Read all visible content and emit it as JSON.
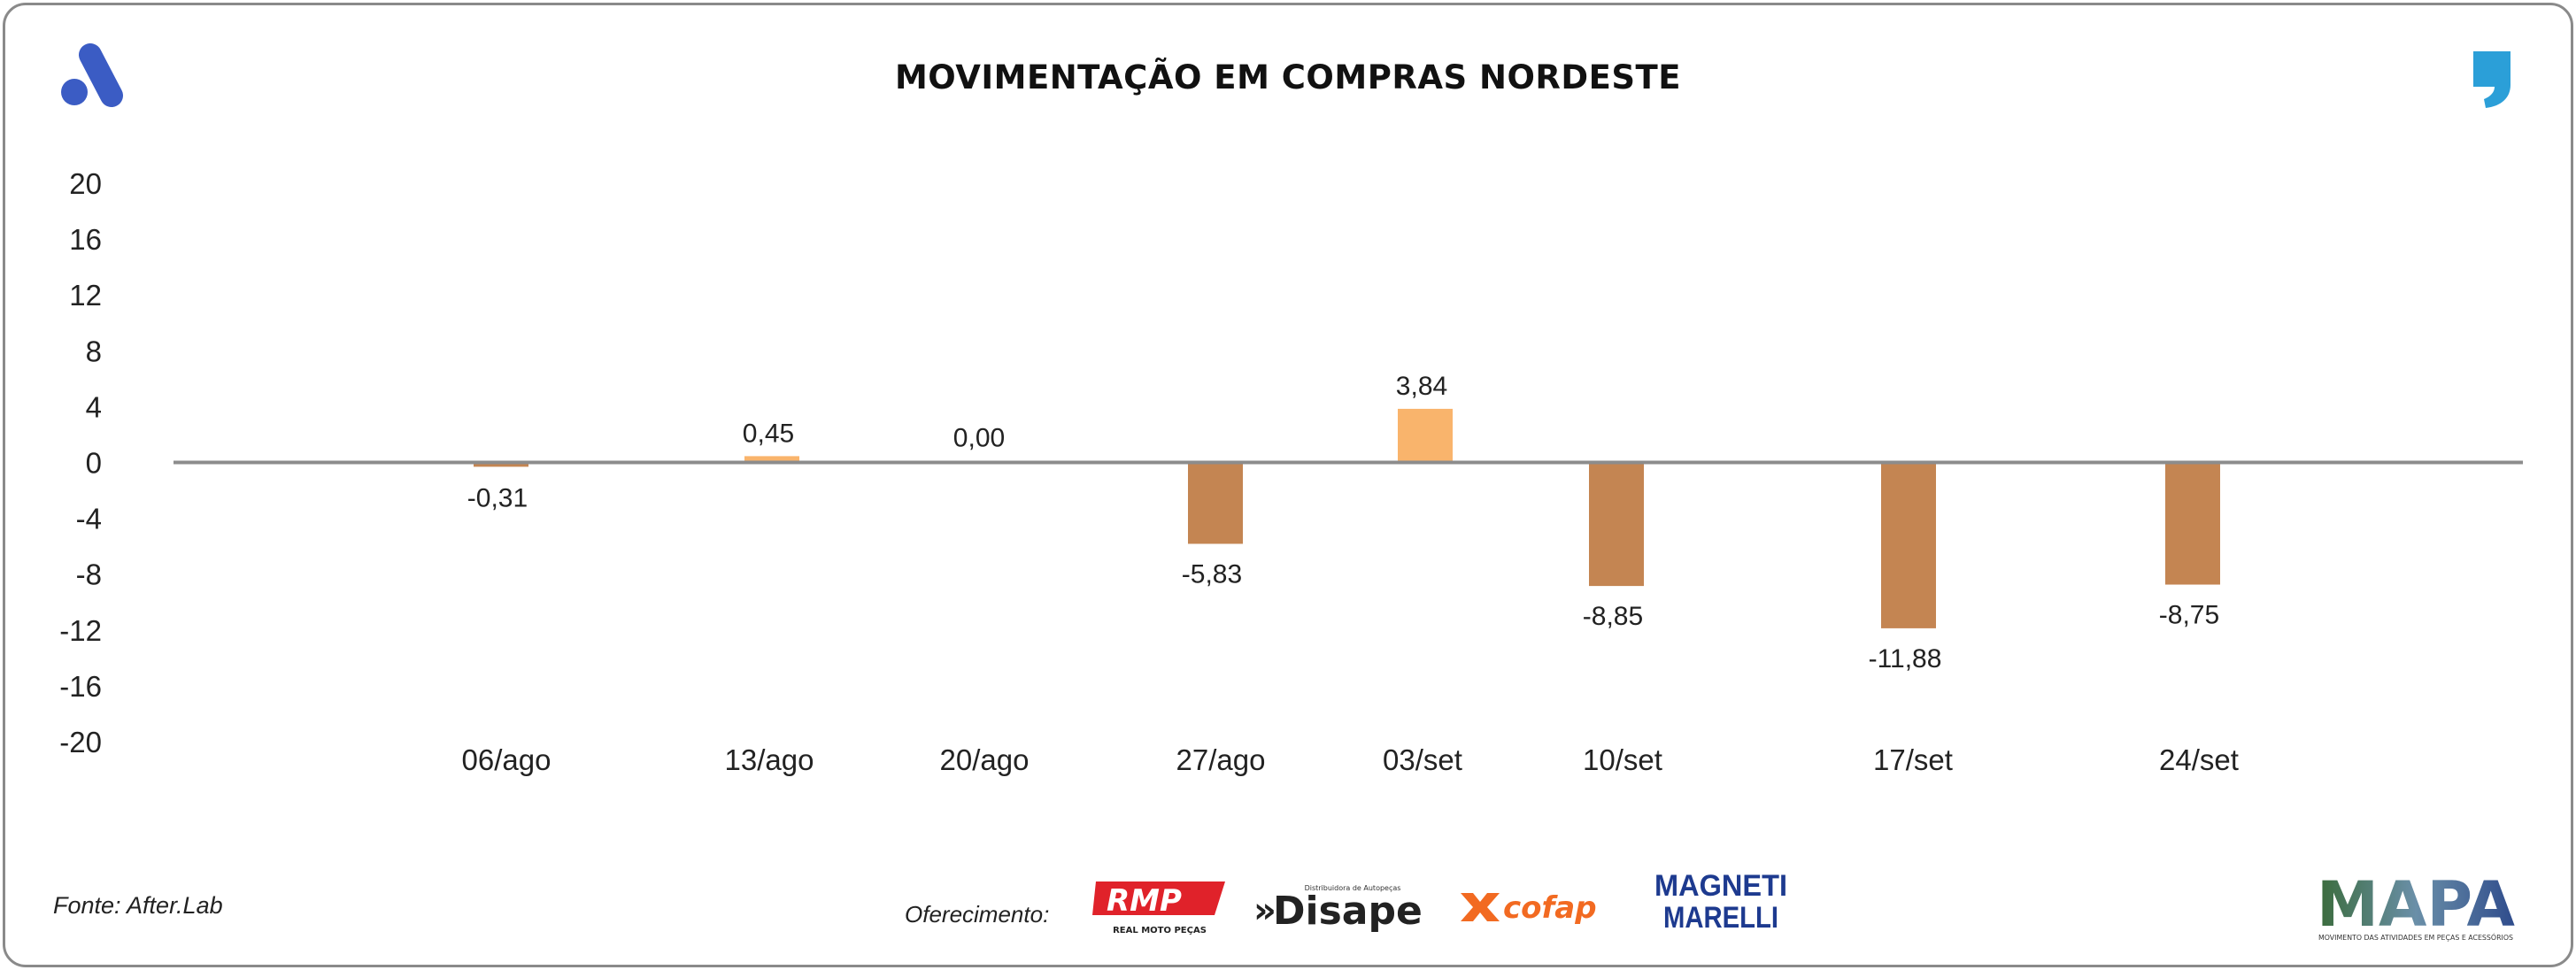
{
  "chart_data": {
    "type": "bar",
    "title": "MOVIMENTAÇÃO EM COMPRAS NORDESTE",
    "categories": [
      "06/ago",
      "13/ago",
      "20/ago",
      "27/ago",
      "03/set",
      "10/set",
      "17/set",
      "24/set"
    ],
    "values": [
      -0.31,
      0.45,
      0.0,
      -5.83,
      3.84,
      -8.85,
      -11.88,
      -8.75
    ],
    "value_labels": [
      "-0,31",
      "0,45",
      "0,00",
      "-5,83",
      "3,84",
      "-8,85",
      "-11,88",
      "-8,75"
    ],
    "y_ticks": [
      20,
      16,
      12,
      8,
      4,
      0,
      -4,
      -8,
      -12,
      -16,
      -20
    ],
    "y_tick_labels": [
      "20",
      "16",
      "12",
      "8",
      "4",
      "0",
      "-4",
      "-8",
      "-12",
      "-16",
      "-20"
    ],
    "ylim": [
      -20,
      20
    ],
    "xlabel": "",
    "ylabel": "",
    "grid": false,
    "legend": "none",
    "colors": {
      "positive": "#f9b46c",
      "negative": "#c48552",
      "axis": "#8c8c8c"
    }
  },
  "footer": {
    "source": "Fonte: After.Lab",
    "sponsor_label": "Oferecimento:",
    "sponsors": {
      "rmp": {
        "name": "RMP",
        "tagline": "REAL MOTO PEÇAS"
      },
      "disape": {
        "name": "Disape",
        "tagline": "Distribuidora de Autopeças",
        "prefix": "»"
      },
      "cofap": {
        "name": "cofap"
      },
      "magneti": {
        "line1": "MAGNETI",
        "line2": "MARELLI"
      }
    },
    "mapa": {
      "name": "MAPA",
      "tagline": "MOVIMENTO DAS ATIVIDADES EM PEÇAS E ACESSÓRIOS"
    }
  },
  "brand_colors": {
    "logo_blue": "#3b5cc4",
    "comma_blue": "#2b9fd8"
  }
}
